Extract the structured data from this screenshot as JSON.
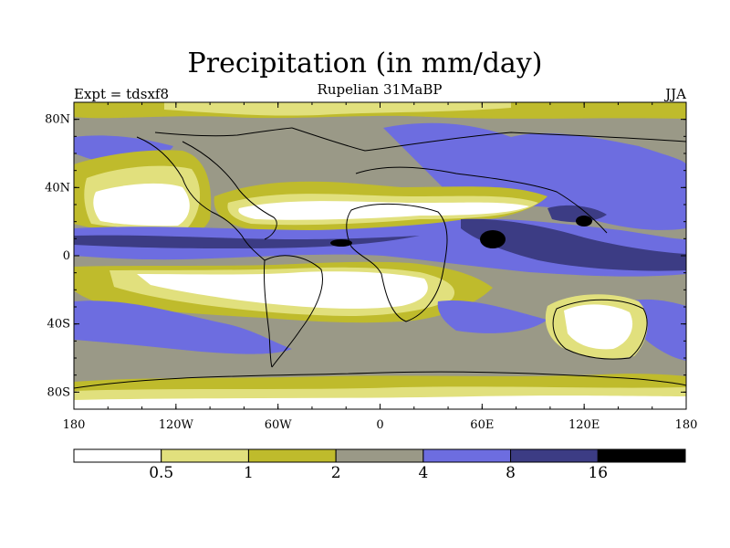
{
  "title": "Precipitation (in mm/day)",
  "subtitle": "Rupelian  31MaBP",
  "experiment_label": "Expt = tdsxf8",
  "season_label": "JJA",
  "colors": {
    "lt_0_5": "#ffffff",
    "0_5_to_1": "#e1e07d",
    "1_to_2": "#bfbb2c",
    "2_to_4": "#9a9987",
    "4_to_8": "#6d6de0",
    "8_to_16": "#3c3c84",
    "gt_16": "#000000",
    "coastline": "#000000"
  },
  "map": {
    "projection": "equirectangular",
    "lon_range": [
      -180,
      180
    ],
    "lat_range": [
      -90,
      90
    ],
    "lat_ticks": [
      "80N",
      "40N",
      "0",
      "40S",
      "80S"
    ],
    "lon_ticks": [
      "180",
      "120W",
      "60W",
      "0",
      "60E",
      "120E",
      "180"
    ]
  },
  "colorbar": {
    "labels": [
      "0.5",
      "1",
      "2",
      "4",
      "8",
      "16"
    ],
    "colors": [
      "#ffffff",
      "#e1e07d",
      "#bfbb2c",
      "#9a9987",
      "#6d6de0",
      "#3c3c84",
      "#000000"
    ]
  }
}
